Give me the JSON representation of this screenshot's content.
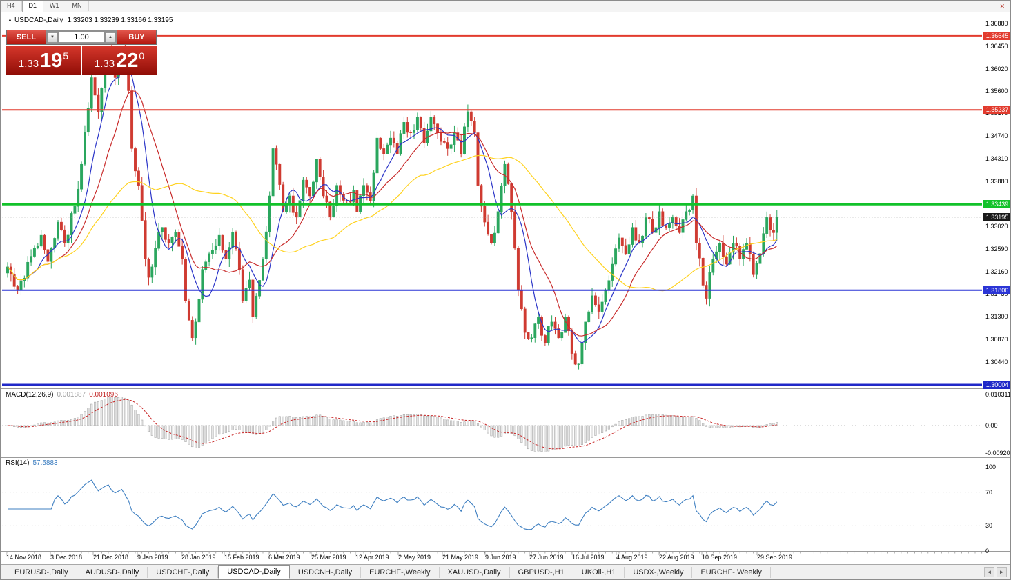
{
  "toolbar": {
    "timeframes": [
      "H4",
      "D1",
      "W1",
      "MN"
    ],
    "active_timeframe": "D1"
  },
  "icons": {
    "chart_marker": "▲",
    "spin_down": "▼",
    "spin_up": "▲",
    "scroll_left": "◄",
    "scroll_right": "►",
    "close": "✕"
  },
  "chart_header": {
    "title": "USDCAD-,Daily",
    "ohlc": "1.33203 1.33239 1.33166 1.33195"
  },
  "trade_panel": {
    "sell_label": "SELL",
    "buy_label": "BUY",
    "volume": "1.00",
    "sell_price": {
      "prefix": "1.33",
      "digits": "19",
      "sup": "5"
    },
    "buy_price": {
      "prefix": "1.33",
      "digits": "22",
      "sup": "0"
    }
  },
  "tab_bar": {
    "active_index": 3,
    "tabs": [
      "EURUSD-,Daily",
      "AUDUSD-,Daily",
      "USDCHF-,Daily",
      "USDCAD-,Daily",
      "USDCNH-,Daily",
      "EURCHF-,Weekly",
      "XAUUSD-,Daily",
      "GBPUSD-,H1",
      "UKOil-,H1",
      "USDX-,Weekly",
      "EURCHF-,Weekly"
    ]
  },
  "chart_data": {
    "type": "candlestick",
    "symbol": "USDCAD-",
    "period": "Daily",
    "ohlc": {
      "open": 1.33203,
      "high": 1.33239,
      "low": 1.33166,
      "close": 1.33195
    },
    "current_price": 1.33195,
    "current_price_label": "1.33195",
    "y_axis_ticks": [
      "1.36880",
      "1.36450",
      "1.36020",
      "1.35600",
      "1.35170",
      "1.34740",
      "1.34310",
      "1.33880",
      "1.33020",
      "1.32590",
      "1.32160",
      "1.31730",
      "1.31300",
      "1.30870",
      "1.30440"
    ],
    "price_levels": [
      {
        "label": "1.36645",
        "value": 1.36645,
        "color": "#e23b2e",
        "width": 2
      },
      {
        "label": "1.35237",
        "value": 1.35237,
        "color": "#e23b2e",
        "width": 2
      },
      {
        "label": "1.33439",
        "value": 1.33439,
        "color": "#12c22a",
        "width": 3
      },
      {
        "label": "1.31806",
        "value": 1.31806,
        "color": "#2b35d6",
        "width": 2
      },
      {
        "label": "1.30004",
        "value": 1.30004,
        "color": "#2028c8",
        "width": 3
      }
    ],
    "x_axis": {
      "dates": [
        "14 Nov 2018",
        "3 Dec 2018",
        "21 Dec 2018",
        "9 Jan 2019",
        "28 Jan 2019",
        "15 Feb 2019",
        "6 Mar 2019",
        "25 Mar 2019",
        "12 Apr 2019",
        "2 May 2019",
        "21 May 2019",
        "9 Jun 2019",
        "27 Jun 2019",
        "16 Jul 2019",
        "4 Aug 2019",
        "22 Aug 2019",
        "10 Sep 2019",
        "29 Sep 2019"
      ],
      "x_positions": [
        8,
        72,
        134,
        198,
        262,
        324,
        388,
        450,
        514,
        576,
        640,
        702,
        766,
        828,
        892,
        954,
        1016,
        1096
      ]
    },
    "candles": {
      "count": 230,
      "up_color": "#2aa65e",
      "down_color": "#cf3a31",
      "anchors": [
        [
          0,
          1.3225
        ],
        [
          3,
          1.318
        ],
        [
          7,
          1.3245
        ],
        [
          10,
          1.3285
        ],
        [
          12,
          1.3235
        ],
        [
          15,
          1.331
        ],
        [
          17,
          1.327
        ],
        [
          20,
          1.334
        ],
        [
          22,
          1.342
        ],
        [
          25,
          1.3585
        ],
        [
          27,
          1.352
        ],
        [
          30,
          1.364
        ],
        [
          32,
          1.3585
        ],
        [
          34,
          1.3645
        ],
        [
          36,
          1.356
        ],
        [
          37,
          1.345
        ],
        [
          39,
          1.338
        ],
        [
          41,
          1.324
        ],
        [
          42,
          1.3205
        ],
        [
          44,
          1.326
        ],
        [
          46,
          1.33
        ],
        [
          48,
          1.327
        ],
        [
          50,
          1.329
        ],
        [
          52,
          1.324
        ],
        [
          53,
          1.316
        ],
        [
          55,
          1.309
        ],
        [
          56,
          1.312
        ],
        [
          58,
          1.322
        ],
        [
          60,
          1.325
        ],
        [
          63,
          1.3285
        ],
        [
          65,
          1.324
        ],
        [
          67,
          1.329
        ],
        [
          69,
          1.322
        ],
        [
          70,
          1.316
        ],
        [
          72,
          1.32
        ],
        [
          73,
          1.313
        ],
        [
          76,
          1.324
        ],
        [
          78,
          1.336
        ],
        [
          79,
          1.345
        ],
        [
          80,
          1.342
        ],
        [
          82,
          1.333
        ],
        [
          84,
          1.336
        ],
        [
          86,
          1.332
        ],
        [
          88,
          1.339
        ],
        [
          90,
          1.336
        ],
        [
          92,
          1.343
        ],
        [
          94,
          1.336
        ],
        [
          96,
          1.332
        ],
        [
          98,
          1.338
        ],
        [
          101,
          1.335
        ],
        [
          103,
          1.337
        ],
        [
          104,
          1.333
        ],
        [
          106,
          1.338
        ],
        [
          108,
          1.335
        ],
        [
          110,
          1.347
        ],
        [
          112,
          1.344
        ],
        [
          114,
          1.347
        ],
        [
          116,
          1.344
        ],
        [
          118,
          1.35
        ],
        [
          120,
          1.348
        ],
        [
          122,
          1.351
        ],
        [
          124,
          1.346
        ],
        [
          126,
          1.351
        ],
        [
          128,
          1.348
        ],
        [
          131,
          1.345
        ],
        [
          133,
          1.348
        ],
        [
          135,
          1.344
        ],
        [
          137,
          1.352
        ],
        [
          139,
          1.348
        ],
        [
          140,
          1.338
        ],
        [
          142,
          1.331
        ],
        [
          144,
          1.327
        ],
        [
          146,
          1.333
        ],
        [
          148,
          1.342
        ],
        [
          150,
          1.333
        ],
        [
          152,
          1.318
        ],
        [
          154,
          1.31
        ],
        [
          156,
          1.309
        ],
        [
          158,
          1.313
        ],
        [
          160,
          1.308
        ],
        [
          162,
          1.312
        ],
        [
          164,
          1.309
        ],
        [
          166,
          1.313
        ],
        [
          168,
          1.306
        ],
        [
          170,
          1.304
        ],
        [
          172,
          1.312
        ],
        [
          174,
          1.317
        ],
        [
          176,
          1.314
        ],
        [
          178,
          1.318
        ],
        [
          180,
          1.323
        ],
        [
          182,
          1.328
        ],
        [
          184,
          1.325
        ],
        [
          186,
          1.33
        ],
        [
          188,
          1.327
        ],
        [
          190,
          1.332
        ],
        [
          192,
          1.329
        ],
        [
          194,
          1.333
        ],
        [
          196,
          1.33
        ],
        [
          198,
          1.332
        ],
        [
          200,
          1.329
        ],
        [
          202,
          1.333
        ],
        [
          204,
          1.336
        ],
        [
          205,
          1.327
        ],
        [
          207,
          1.319
        ],
        [
          208,
          1.3165
        ],
        [
          210,
          1.324
        ],
        [
          212,
          1.327
        ],
        [
          214,
          1.323
        ],
        [
          216,
          1.327
        ],
        [
          218,
          1.324
        ],
        [
          220,
          1.327
        ],
        [
          222,
          1.321
        ],
        [
          224,
          1.325
        ],
        [
          226,
          1.332
        ],
        [
          228,
          1.329
        ],
        [
          229,
          1.33195
        ]
      ]
    },
    "moving_averages": [
      {
        "period": 8,
        "color": "#2b35c8"
      },
      {
        "period": 16,
        "color": "#c82b2b"
      },
      {
        "period": 45,
        "color": "#ffd21e"
      }
    ],
    "indicators": {
      "macd": {
        "name": "MACD(12,26,9)",
        "value_main": "0.001887",
        "value_signal": "0.001096",
        "fast": 12,
        "slow": 26,
        "signal": 9,
        "axis_labels": [
          "0.010311",
          "0.00",
          "-0.009203"
        ],
        "axis_values": [
          0.010311,
          0,
          -0.009203
        ],
        "histogram_fill": "#e6e6e6",
        "histogram_stroke": "#9f9f9f",
        "signal_color": "#c82525"
      },
      "rsi": {
        "name": "RSI(14)",
        "value": "57.5883",
        "period": 14,
        "axis_labels": [
          "100",
          "70",
          "30",
          "0"
        ],
        "axis_values": [
          100,
          70,
          30,
          0
        ],
        "levels": [
          70,
          30
        ],
        "line_color": "#3e7fc1"
      }
    }
  }
}
